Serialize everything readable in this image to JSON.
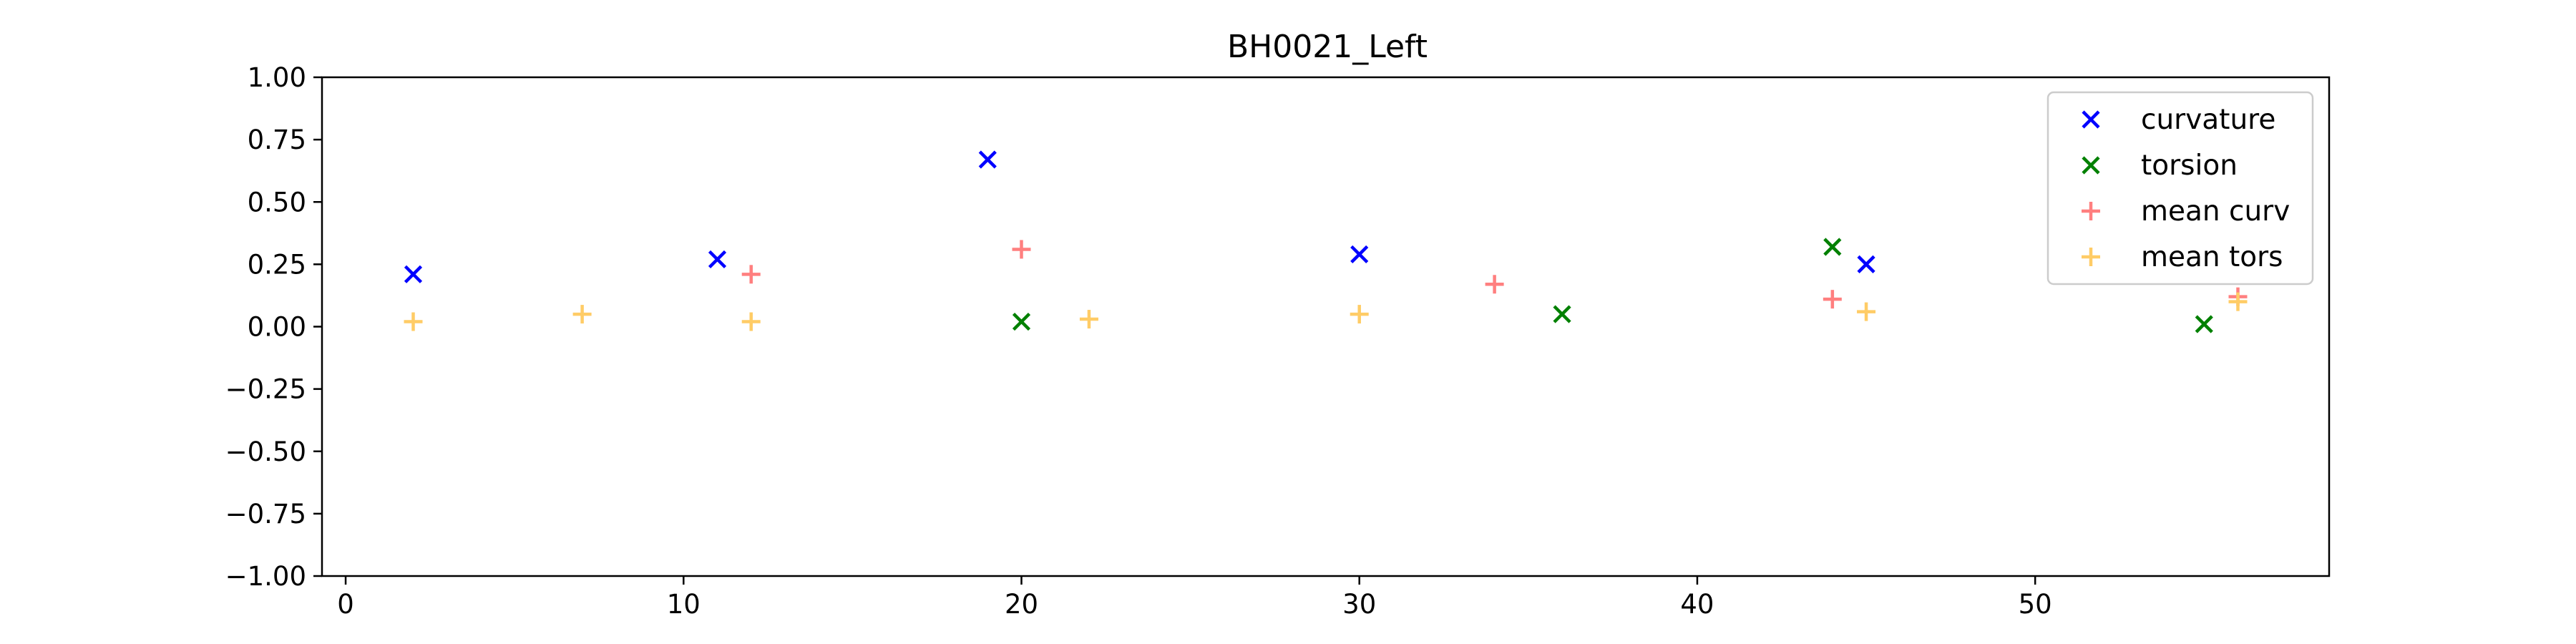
{
  "chart_data": {
    "type": "scatter",
    "title": "BH0021_Left",
    "xlabel": "",
    "ylabel": "",
    "xlim": [
      -0.7,
      58.7
    ],
    "ylim": [
      -1.0,
      1.0
    ],
    "xticks": [
      0,
      10,
      20,
      30,
      40,
      50
    ],
    "yticks": [
      -1.0,
      -0.75,
      -0.5,
      -0.25,
      0.0,
      0.25,
      0.5,
      0.75,
      1.0
    ],
    "ytick_labels": [
      "−1.00",
      "−0.75",
      "−0.50",
      "−0.25",
      "0.00",
      "0.25",
      "0.50",
      "0.75",
      "1.00"
    ],
    "grid": false,
    "legend_position": "top-right",
    "series": [
      {
        "name": "curvature",
        "marker": "x",
        "color": "#0000ff",
        "points": [
          {
            "x": 2,
            "y": 0.21
          },
          {
            "x": 11,
            "y": 0.27
          },
          {
            "x": 19,
            "y": 0.67
          },
          {
            "x": 30,
            "y": 0.29
          },
          {
            "x": 45,
            "y": 0.25
          }
        ]
      },
      {
        "name": "torsion",
        "marker": "x",
        "color": "#008000",
        "points": [
          {
            "x": 20,
            "y": 0.02
          },
          {
            "x": 36,
            "y": 0.05
          },
          {
            "x": 44,
            "y": 0.32
          },
          {
            "x": 55,
            "y": 0.01
          }
        ]
      },
      {
        "name": "mean curv",
        "marker": "+",
        "color": "#ff7f7f",
        "points": [
          {
            "x": 12,
            "y": 0.21
          },
          {
            "x": 20,
            "y": 0.31
          },
          {
            "x": 34,
            "y": 0.17
          },
          {
            "x": 44,
            "y": 0.11
          },
          {
            "x": 56,
            "y": 0.12
          }
        ]
      },
      {
        "name": "mean tors",
        "marker": "+",
        "color": "#ffcc66",
        "points": [
          {
            "x": 2,
            "y": 0.02
          },
          {
            "x": 7,
            "y": 0.05
          },
          {
            "x": 12,
            "y": 0.02
          },
          {
            "x": 22,
            "y": 0.03
          },
          {
            "x": 30,
            "y": 0.05
          },
          {
            "x": 45,
            "y": 0.06
          },
          {
            "x": 56,
            "y": 0.1
          }
        ]
      }
    ]
  }
}
